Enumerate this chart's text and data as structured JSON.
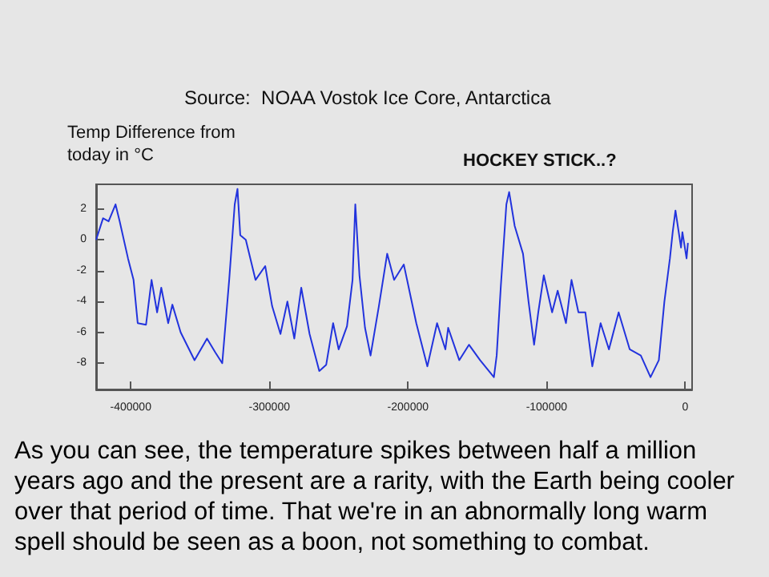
{
  "chart_data": {
    "type": "line",
    "title": "HOCKEY STICK..?",
    "ylabel": "Temp Difference from\ntoday in °C",
    "annotations": [
      "Source:  NOAA Vostok Ice Core, Antarctica",
      "As you can see, the temperature spikes between half a million years ago and the present are a rarity, with the Earth being cooler over that period of time. That we're in an abnormally long warm spell should be seen as a boon, not something to combat."
    ],
    "x": [
      -425000,
      -420000,
      -416000,
      -411000,
      -408000,
      -402000,
      -398000,
      -395000,
      -389000,
      -385000,
      -381000,
      -378000,
      -373000,
      -370000,
      -364000,
      -354000,
      -345000,
      -339000,
      -334000,
      -329000,
      -325000,
      -323000,
      -321000,
      -317000,
      -310000,
      -303000,
      -298000,
      -292000,
      -287000,
      -282000,
      -277000,
      -271000,
      -264000,
      -259000,
      -254000,
      -250000,
      -244000,
      -240000,
      -238000,
      -235000,
      -231000,
      -227000,
      -221000,
      -215000,
      -210000,
      -203000,
      -194000,
      -186000,
      -179000,
      -173000,
      -171000,
      -163000,
      -156000,
      -148000,
      -138000,
      -136000,
      -133000,
      -129000,
      -127000,
      -123000,
      -117000,
      -113000,
      -109000,
      -106000,
      -102000,
      -96000,
      -92000,
      -86000,
      -82000,
      -77000,
      -72000,
      -67000,
      -61000,
      -55000,
      -48000,
      -40000,
      -32000,
      -25000,
      -19000,
      -15000,
      -11000,
      -9000,
      -7000,
      -3000,
      -2000,
      1000,
      2000
    ],
    "series": [
      {
        "color": "#2233dd",
        "values": [
          0.0,
          1.4,
          1.2,
          2.3,
          1.2,
          -1.2,
          -2.6,
          -5.4,
          -5.5,
          -2.6,
          -4.7,
          -3.1,
          -5.4,
          -4.2,
          -6.0,
          -7.8,
          -6.4,
          -7.3,
          -8.0,
          -2.6,
          2.3,
          3.3,
          0.3,
          0.0,
          -2.6,
          -1.7,
          -4.3,
          -6.1,
          -4.0,
          -6.4,
          -3.1,
          -6.1,
          -8.5,
          -8.1,
          -5.4,
          -7.1,
          -5.6,
          -2.6,
          2.3,
          -2.3,
          -5.7,
          -7.5,
          -4.3,
          -0.9,
          -2.6,
          -1.6,
          -5.4,
          -8.2,
          -5.4,
          -7.1,
          -5.7,
          -7.8,
          -6.8,
          -7.8,
          -8.9,
          -7.5,
          -3.0,
          2.3,
          3.1,
          0.9,
          -0.9,
          -4.0,
          -6.8,
          -4.7,
          -2.3,
          -4.7,
          -3.3,
          -5.4,
          -2.6,
          -4.7,
          -4.7,
          -8.2,
          -5.4,
          -7.1,
          -4.7,
          -7.1,
          -7.5,
          -8.9,
          -7.8,
          -4.0,
          -1.2,
          0.5,
          1.9,
          -0.5,
          0.5,
          -1.2,
          -0.2
        ]
      }
    ],
    "xlim": [
      -425000,
      5000
    ],
    "ylim": [
      -9.7,
      3.6
    ],
    "xticks": [
      -400000,
      -300000,
      -200000,
      -100000,
      0
    ],
    "yticks": [
      -8,
      -6,
      -4,
      -2,
      0,
      2
    ],
    "grid": false,
    "marker": "none",
    "line_style": "solid"
  }
}
